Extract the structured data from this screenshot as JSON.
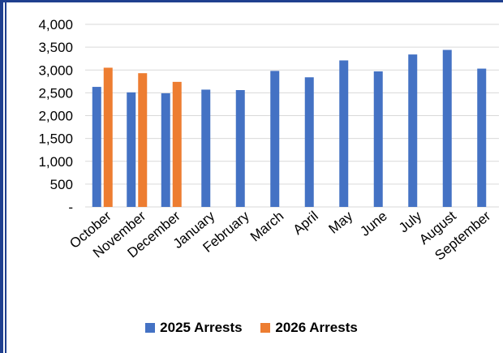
{
  "chart_data": {
    "type": "bar",
    "categories": [
      "October",
      "November",
      "December",
      "January",
      "February",
      "March",
      "April",
      "May",
      "June",
      "July",
      "August",
      "September"
    ],
    "series": [
      {
        "name": "2025 Arrests",
        "color": "#4472c4",
        "values": [
          2630,
          2510,
          2490,
          2570,
          2560,
          2980,
          2840,
          3210,
          2970,
          3340,
          3440,
          3030
        ]
      },
      {
        "name": "2026 Arrests",
        "color": "#ed7d31",
        "values": [
          3050,
          2930,
          2740,
          null,
          null,
          null,
          null,
          null,
          null,
          null,
          null,
          null
        ]
      }
    ],
    "yticks": [
      "-",
      "500",
      "1,000",
      "1,500",
      "2,000",
      "2,500",
      "3,000",
      "3,500",
      "4,000"
    ],
    "ylim": [
      0,
      4000
    ],
    "grid": true,
    "legend_position": "bottom"
  }
}
